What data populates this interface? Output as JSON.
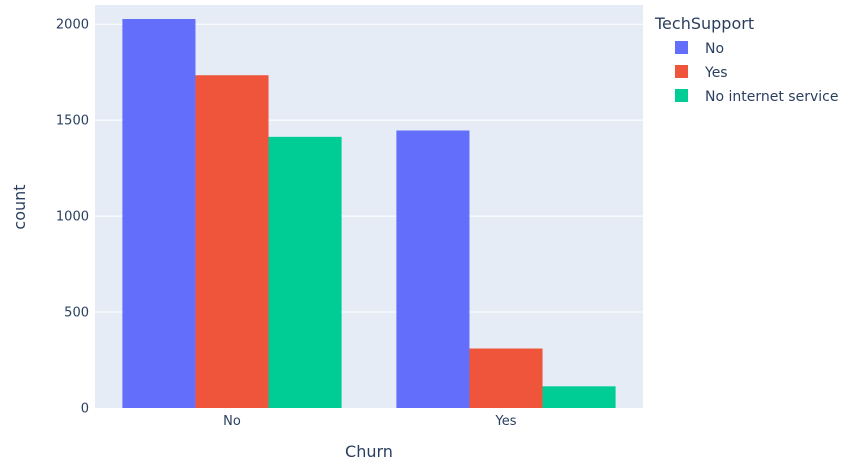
{
  "chart_data": {
    "type": "bar",
    "barmode": "group",
    "xlabel": "Churn",
    "ylabel": "count",
    "categories": [
      "No",
      "Yes"
    ],
    "ylim": [
      0,
      2100
    ],
    "yticks": [
      0,
      500,
      1000,
      1500,
      2000
    ],
    "grid": true,
    "legend": {
      "title": "TechSupport",
      "placement": "right"
    },
    "series": [
      {
        "name": "No",
        "color": "#636efa",
        "values": [
          2027,
          1446
        ]
      },
      {
        "name": "Yes",
        "color": "#ef553b",
        "values": [
          1734,
          310
        ]
      },
      {
        "name": "No internet service",
        "color": "#00cc96",
        "values": [
          1413,
          113
        ]
      }
    ],
    "plot_background": "#e5ecf6",
    "gridline_color": "#ffffff"
  }
}
